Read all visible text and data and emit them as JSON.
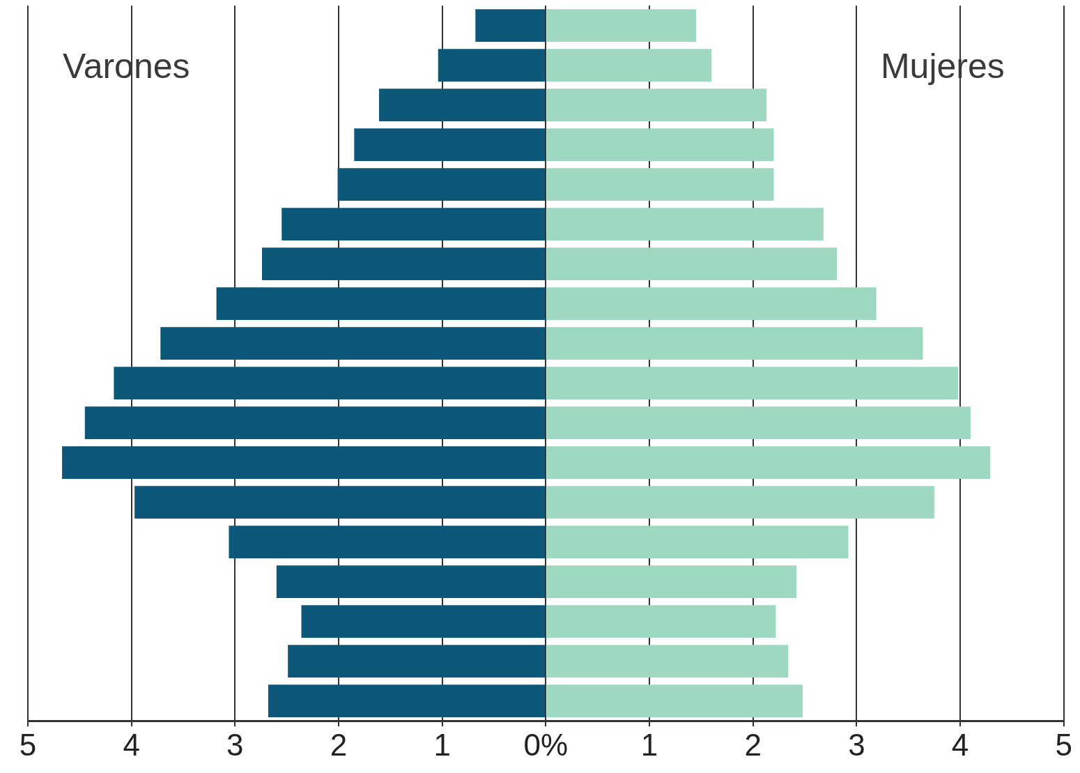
{
  "chart_data": {
    "type": "bar",
    "orientation": "horizontal",
    "stacked": true,
    "categories": [
      null,
      null,
      null,
      null,
      null,
      null,
      null,
      null,
      null,
      null,
      null,
      null,
      null,
      null,
      null,
      null,
      null,
      null
    ],
    "series": [
      {
        "color": "#0d5878",
        "values": [
          -0.68,
          -1.04,
          -1.61,
          -1.85,
          -2.01,
          -2.55,
          -2.74,
          -3.18,
          -3.72,
          -4.17,
          -4.45,
          -4.67,
          -3.97,
          -3.06,
          -2.6,
          -2.36,
          -2.49,
          -2.68
        ]
      },
      {
        "color": "#9ed8c0",
        "values": [
          1.45,
          1.6,
          2.13,
          2.2,
          2.2,
          2.68,
          2.81,
          3.19,
          3.64,
          3.98,
          4.1,
          4.29,
          3.75,
          2.92,
          2.42,
          2.22,
          2.34,
          2.48
        ]
      }
    ],
    "xlim": [
      -5,
      5
    ],
    "xticks": [
      {
        "value": -5,
        "label": "5"
      },
      {
        "value": -4,
        "label": "4"
      },
      {
        "value": -3,
        "label": "3"
      },
      {
        "value": -2,
        "label": "2"
      },
      {
        "value": -1,
        "label": "1"
      },
      {
        "value": 0,
        "label": "0%"
      },
      1,
      2,
      3,
      4,
      5
    ],
    "grid": "x",
    "tick_labels": "x",
    "legend": false,
    "annotations": [
      "Varones",
      "Mujeres"
    ]
  }
}
